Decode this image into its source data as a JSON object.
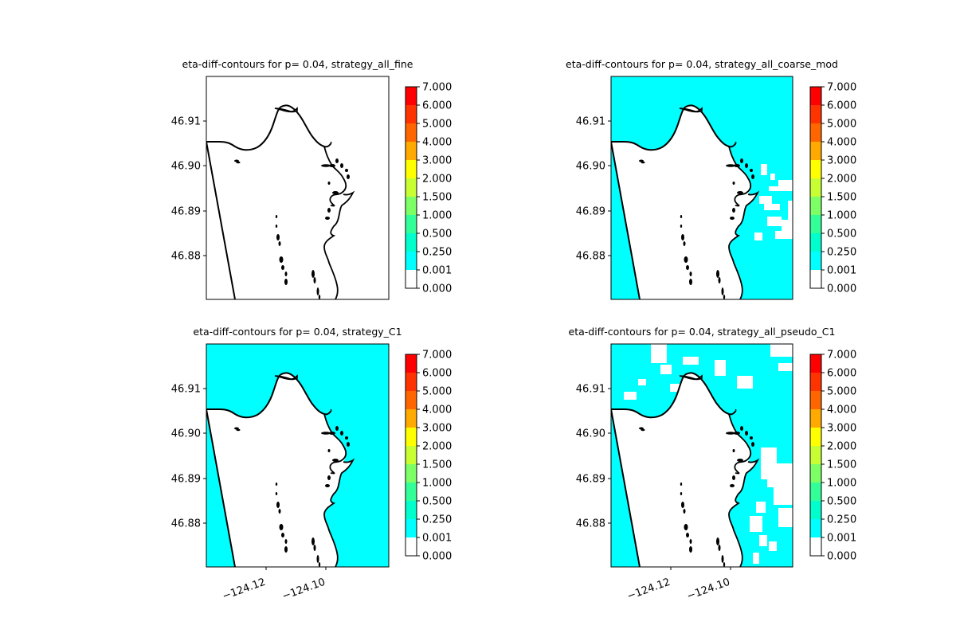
{
  "chart_data": [
    {
      "type": "contour",
      "title": "eta-diff-contours for p= 0.04, strategy_all_fine",
      "yticks": [
        "46.91",
        "46.90",
        "46.89",
        "46.88"
      ],
      "xticks": [],
      "fill": "none",
      "colorbar": {
        "levels": [
          "7.000",
          "6.000",
          "5.000",
          "4.000",
          "3.000",
          "2.000",
          "1.500",
          "1.000",
          "0.500",
          "0.250",
          "0.001",
          "0.000"
        ],
        "colors": [
          "#ff0000",
          "#ff3300",
          "#ff6600",
          "#ffaa00",
          "#ffff00",
          "#c8ff33",
          "#7dff66",
          "#33ff99",
          "#00ffcc",
          "#00ffff",
          "#ffffff"
        ]
      }
    },
    {
      "type": "contour",
      "title": "eta-diff-contours for p= 0.04, strategy_all_coarse_mod",
      "yticks": [
        "46.91",
        "46.90",
        "46.89",
        "46.88"
      ],
      "xticks": [],
      "fill": "cyan-with-gaps",
      "colorbar": {
        "levels": [
          "7.000",
          "6.000",
          "5.000",
          "4.000",
          "3.000",
          "2.000",
          "1.500",
          "1.000",
          "0.500",
          "0.250",
          "0.001",
          "0.000"
        ],
        "colors": [
          "#ff0000",
          "#ff3300",
          "#ff6600",
          "#ffaa00",
          "#ffff00",
          "#c8ff33",
          "#7dff66",
          "#33ff99",
          "#00ffcc",
          "#00ffff",
          "#ffffff"
        ]
      }
    },
    {
      "type": "contour",
      "title": "eta-diff-contours for p= 0.04, strategy_C1",
      "yticks": [
        "46.91",
        "46.90",
        "46.89",
        "46.88"
      ],
      "xticks": [
        "−124.12",
        "−124.10"
      ],
      "fill": "cyan",
      "colorbar": {
        "levels": [
          "7.000",
          "6.000",
          "5.000",
          "4.000",
          "3.000",
          "2.000",
          "1.500",
          "1.000",
          "0.500",
          "0.250",
          "0.001",
          "0.000"
        ],
        "colors": [
          "#ff0000",
          "#ff3300",
          "#ff6600",
          "#ffaa00",
          "#ffff00",
          "#c8ff33",
          "#7dff66",
          "#33ff99",
          "#00ffcc",
          "#00ffff",
          "#ffffff"
        ]
      }
    },
    {
      "type": "contour",
      "title": "eta-diff-contours for p= 0.04, strategy_all_pseudo_C1",
      "yticks": [
        "46.91",
        "46.90",
        "46.89",
        "46.88"
      ],
      "xticks": [
        "−124.12",
        "−124.10"
      ],
      "fill": "cyan-with-gaps",
      "colorbar": {
        "levels": [
          "7.000",
          "6.000",
          "5.000",
          "4.000",
          "3.000",
          "2.000",
          "1.500",
          "1.000",
          "0.500",
          "0.250",
          "0.001",
          "0.000"
        ],
        "colors": [
          "#ff0000",
          "#ff3300",
          "#ff6600",
          "#ffaa00",
          "#ffff00",
          "#c8ff33",
          "#7dff66",
          "#33ff99",
          "#00ffcc",
          "#00ffff",
          "#ffffff"
        ]
      }
    }
  ]
}
